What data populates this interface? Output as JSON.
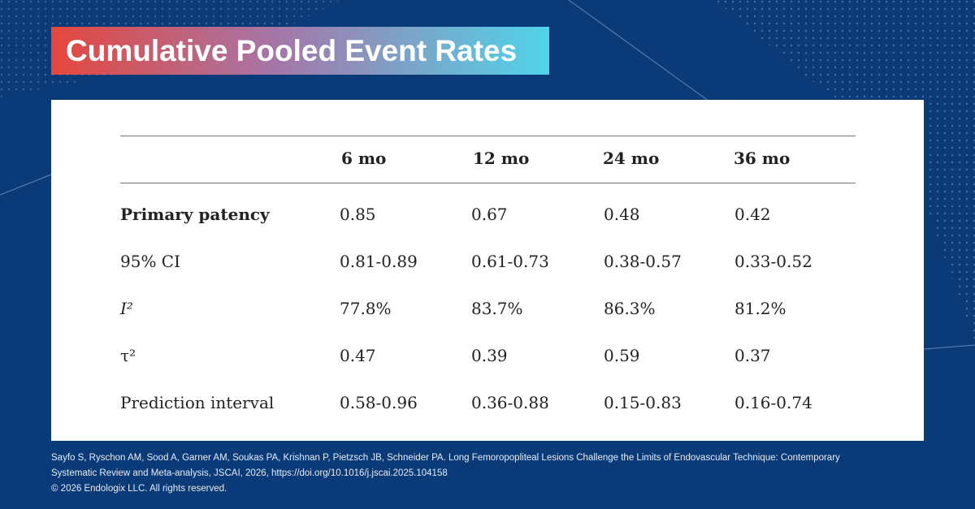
{
  "header": {
    "title": "Cumulative Pooled Event Rates"
  },
  "table": {
    "columns": [
      "6 mo",
      "12 mo",
      "24 mo",
      "36 mo"
    ],
    "rows": [
      {
        "label": "Primary patency",
        "cells": [
          "0.85",
          "0.67",
          "0.48",
          "0.42"
        ]
      },
      {
        "label": "95% CI",
        "cells": [
          "0.81-0.89",
          "0.61-0.73",
          "0.38-0.57",
          "0.33-0.52"
        ]
      },
      {
        "label": "I²",
        "cells": [
          "77.8%",
          "83.7%",
          "86.3%",
          "81.2%"
        ]
      },
      {
        "label": "τ²",
        "cells": [
          "0.47",
          "0.39",
          "0.59",
          "0.37"
        ]
      },
      {
        "label": "Prediction interval",
        "cells": [
          "0.58-0.96",
          "0.36-0.88",
          "0.15-0.83",
          "0.16-0.74"
        ]
      }
    ]
  },
  "footer": {
    "citation": [
      "Sayfo S, Ryschon AM, Sood A, Garner AM, Soukas PA, Krishnan P, Pietzsch JB, Schneider PA. Long Femoropopliteal Lesions Challenge the Limits of Endovascular Technique: Contemporary",
      "Systematic Review and Meta-analysis, JSCAI, 2026, https://doi.org/10.1016/j.jscai.2025.104158"
    ],
    "copyright": "© 2026 Endologix LLC. All rights reserved."
  }
}
